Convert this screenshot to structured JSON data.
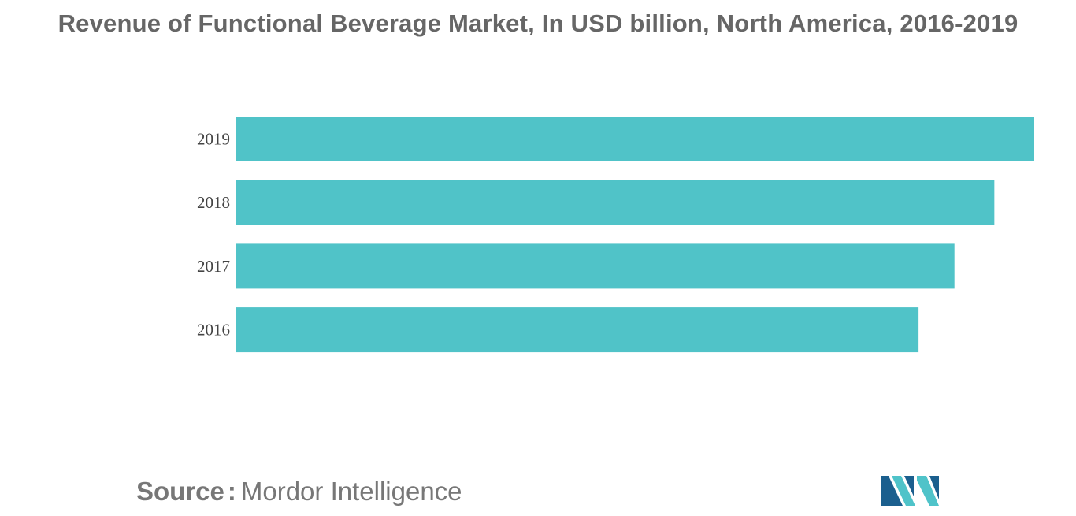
{
  "title": "Revenue of Functional Beverage Market, In USD billion, North America, 2016-2019",
  "source": {
    "label": "Source",
    "separator": ":",
    "value": "Mordor Intelligence"
  },
  "logo": {
    "name": "mordor-intelligence-logo",
    "colors": [
      "#1b5f8e",
      "#4fc3c9"
    ]
  },
  "chart_data": {
    "type": "bar",
    "orientation": "horizontal",
    "categories": [
      "2019",
      "2018",
      "2017",
      "2016"
    ],
    "values": [
      100,
      95,
      90,
      85.5
    ],
    "value_scale": "relative (no value axis printed)",
    "xlim": [
      0,
      100
    ],
    "title": "Revenue of Functional Beverage Market, In USD billion, North America, 2016-2019",
    "grid": false,
    "legend": "none",
    "bar_color": "#50c3c8"
  }
}
